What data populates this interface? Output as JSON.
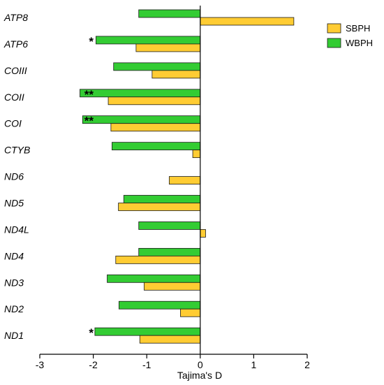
{
  "chart_data": {
    "type": "bar",
    "orientation": "horizontal",
    "categories": [
      "ATP8",
      "ATP6",
      "COIII",
      "COII",
      "COI",
      "CTYB",
      "ND6",
      "ND5",
      "ND4L",
      "ND4",
      "ND3",
      "ND2",
      "ND1"
    ],
    "series": [
      {
        "name": "WBPH",
        "color": "#33cc33",
        "values": [
          -1.15,
          -1.95,
          -1.62,
          -2.25,
          -2.2,
          -1.65,
          null,
          -1.43,
          -1.15,
          -1.15,
          -1.74,
          -1.52,
          -1.97
        ]
      },
      {
        "name": "SBPH",
        "color": "#ffcc33",
        "values": [
          1.75,
          -1.2,
          -0.9,
          -1.72,
          -1.67,
          -0.14,
          -0.58,
          -1.53,
          0.1,
          -1.58,
          -1.05,
          -0.37,
          -1.13
        ]
      }
    ],
    "significance": [
      "",
      "*",
      "",
      "**",
      "**",
      "",
      "",
      "",
      "",
      "",
      "",
      "",
      "*"
    ],
    "xlabel": "Tajima's D",
    "xlim": [
      -3,
      2
    ],
    "xticks": [
      "-3",
      "-2",
      "-1",
      "0",
      "1",
      "2"
    ],
    "legend": {
      "position": "top-right",
      "entries": [
        "SBPH",
        "WBPH"
      ]
    }
  }
}
